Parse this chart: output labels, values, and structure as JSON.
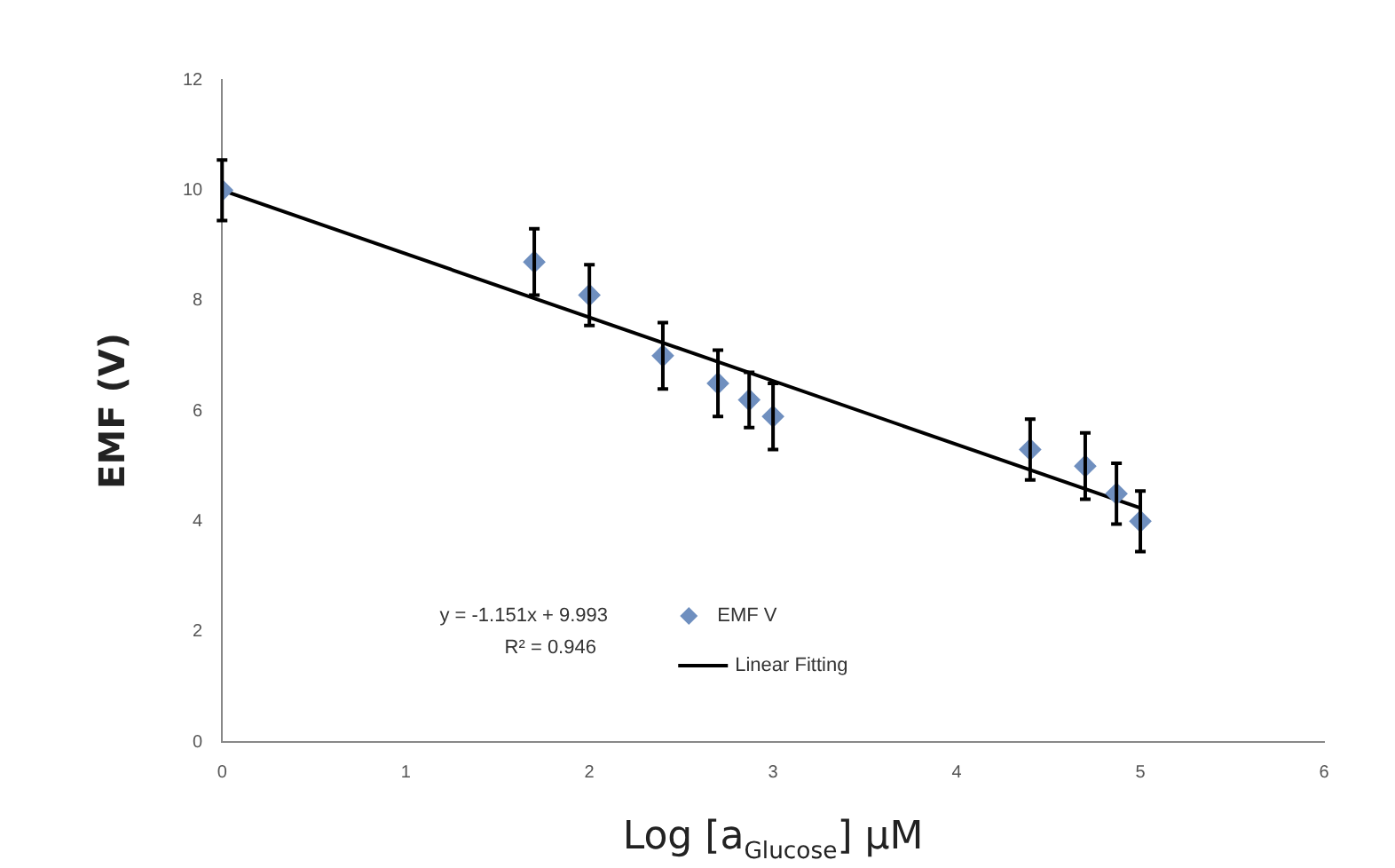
{
  "chart_data": {
    "type": "scatter",
    "xlabel": "Log [a$_{Glucose}$] μM",
    "ylabel": "EMF (V)",
    "xlim": [
      0,
      6
    ],
    "xticks": [
      0,
      1,
      2,
      3,
      4,
      5,
      6
    ],
    "ylim": [
      0,
      12
    ],
    "yticks": [
      0,
      2,
      4,
      6,
      8,
      10,
      12
    ],
    "grid": false,
    "legend": "bottom",
    "marker": "diamond",
    "annotations": [
      "y = -1.151x + 9.993",
      "R² = 0.946"
    ],
    "series": [
      {
        "name": "EMF V",
        "type": "scatter",
        "color": "#6f8fbf",
        "x": [
          0,
          1.7,
          2,
          2.4,
          2.7,
          2.87,
          3,
          4.4,
          4.7,
          4.87,
          5
        ],
        "values": [
          10,
          8.7,
          8.1,
          7,
          6.5,
          6.2,
          5.9,
          5.3,
          5,
          4.5,
          4
        ],
        "errors": [
          0.55,
          0.6,
          0.55,
          0.6,
          0.6,
          0.5,
          0.6,
          0.55,
          0.6,
          0.55,
          0.55
        ]
      },
      {
        "name": "Linear Fitting",
        "type": "line",
        "color": "#000000",
        "x": [
          0,
          5
        ],
        "values": [
          10,
          4.24
        ],
        "line_style": "solid",
        "marker": "none"
      }
    ]
  }
}
